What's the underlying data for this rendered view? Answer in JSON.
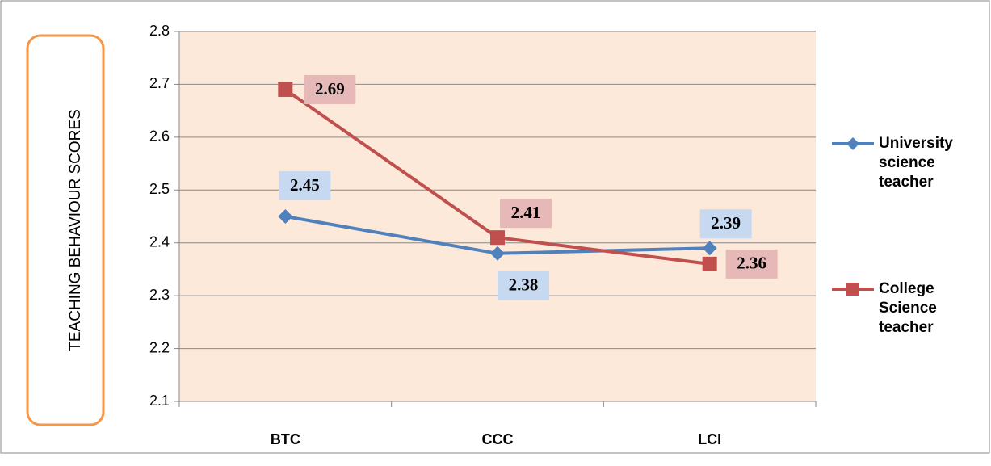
{
  "chart_data": {
    "type": "line",
    "y_label": "TEACHING BEHAVIOUR  SCORES",
    "categories": [
      "BTC",
      "CCC",
      "LCI"
    ],
    "series": [
      {
        "name": "University science teacher",
        "color": "#4f81bd",
        "label_bg": "#c6d9f1",
        "marker": "diamond",
        "values": [
          2.45,
          2.38,
          2.39
        ]
      },
      {
        "name": "College Science teacher",
        "color": "#c0504d",
        "label_bg": "#e6b9b8",
        "marker": "square",
        "values": [
          2.69,
          2.41,
          2.36
        ]
      }
    ],
    "ylim": [
      2.1,
      2.8
    ],
    "yticks": [
      2.1,
      2.2,
      2.3,
      2.4,
      2.5,
      2.6,
      2.7,
      2.8
    ],
    "grid": true,
    "legend": "right"
  }
}
